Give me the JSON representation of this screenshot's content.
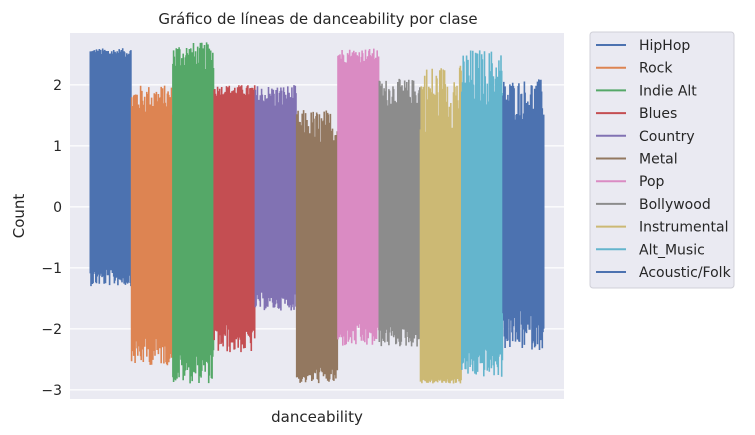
{
  "chart_data": {
    "type": "line",
    "title": "Gráfico de líneas de danceability por clase",
    "xlabel": "danceability",
    "ylabel": "Count",
    "ylim": [
      -3.15,
      2.85
    ],
    "yticks": [
      -3,
      -2,
      -1,
      0,
      1,
      2
    ],
    "ytick_labels": [
      "−3",
      "−2",
      "−1",
      "0",
      "1",
      "2"
    ],
    "grid": true,
    "legend_position": "outside-right",
    "background": "#eaeaf2",
    "series": [
      {
        "name": "HipHop",
        "color": "#4c72b0",
        "x_range": [
          0.0,
          1.0
        ],
        "range": [
          -1.3,
          2.6
        ],
        "core": [
          -1.0,
          2.45
        ]
      },
      {
        "name": "Rock",
        "color": "#dd8452",
        "x_range": [
          1.0,
          2.0
        ],
        "range": [
          -2.6,
          2.0
        ],
        "core": [
          -2.1,
          1.5
        ]
      },
      {
        "name": "Indie Alt",
        "color": "#55a868",
        "x_range": [
          2.0,
          3.0
        ],
        "range": [
          -2.9,
          2.7
        ],
        "core": [
          -2.3,
          2.2
        ]
      },
      {
        "name": "Blues",
        "color": "#c44e52",
        "x_range": [
          3.0,
          4.0
        ],
        "range": [
          -2.4,
          2.0
        ],
        "core": [
          -1.9,
          1.8
        ]
      },
      {
        "name": "Country",
        "color": "#8172b3",
        "x_range": [
          4.0,
          5.0
        ],
        "range": [
          -1.7,
          2.0
        ],
        "core": [
          -1.4,
          1.6
        ]
      },
      {
        "name": "Metal",
        "color": "#937860",
        "x_range": [
          5.0,
          6.0
        ],
        "range": [
          -2.9,
          1.6
        ],
        "core": [
          -2.6,
          0.9
        ]
      },
      {
        "name": "Pop",
        "color": "#da8bc3",
        "x_range": [
          6.0,
          7.0
        ],
        "range": [
          -2.3,
          2.6
        ],
        "core": [
          -1.9,
          2.35
        ]
      },
      {
        "name": "Bollywood",
        "color": "#8c8c8c",
        "x_range": [
          7.0,
          8.0
        ],
        "range": [
          -2.3,
          2.1
        ],
        "core": [
          -1.9,
          1.6
        ]
      },
      {
        "name": "Instrumental",
        "color": "#ccb974",
        "x_range": [
          8.0,
          9.0
        ],
        "range": [
          -2.9,
          2.35
        ],
        "core": [
          -2.8,
          1.2
        ]
      },
      {
        "name": "Alt_Music",
        "color": "#64b5cd",
        "x_range": [
          9.0,
          10.0
        ],
        "range": [
          -2.8,
          2.6
        ],
        "core": [
          -2.3,
          1.6
        ]
      },
      {
        "name": "Acoustic/Folk",
        "color": "#4c72b0",
        "x_range": [
          10.0,
          11.0
        ],
        "range": [
          -2.35,
          2.1
        ],
        "core": [
          -1.7,
          1.4
        ]
      }
    ]
  }
}
